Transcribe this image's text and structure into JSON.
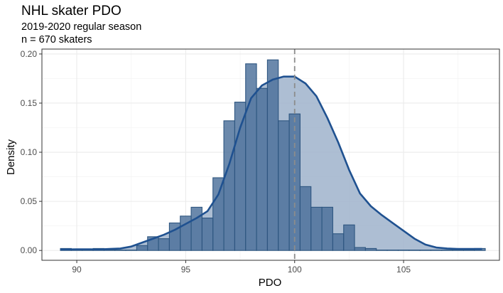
{
  "chart_data": {
    "type": "histogram",
    "title": "NHL skater PDO",
    "subtitle_lines": [
      "2019-2020 regular season",
      "n = 670 skaters"
    ],
    "xlabel": "PDO",
    "ylabel": "Density",
    "xlim": [
      88.4,
      109.4
    ],
    "ylim": [
      -0.01,
      0.205
    ],
    "x_ticks": [
      90,
      95,
      100,
      105
    ],
    "x_tick_labels": [
      "90",
      "95",
      "100",
      "105"
    ],
    "y_ticks": [
      0,
      0.05,
      0.1,
      0.15,
      0.2
    ],
    "y_tick_labels": [
      "0.00",
      "0.05",
      "0.10",
      "0.15",
      "0.20"
    ],
    "grid": true,
    "reference_line_x": 100,
    "bin_width": 0.5,
    "bins_x_start": [
      89.25,
      89.75,
      90.25,
      90.75,
      91.25,
      91.75,
      92.25,
      92.75,
      93.25,
      93.75,
      94.25,
      94.75,
      95.25,
      95.75,
      96.25,
      96.75,
      97.25,
      97.75,
      98.25,
      98.75,
      99.25,
      99.75,
      100.25,
      100.75,
      101.25,
      101.75,
      102.25,
      102.75,
      103.25,
      103.75,
      104.25,
      104.75,
      105.25,
      105.75,
      106.25,
      106.75,
      107.25,
      107.75,
      108.25
    ],
    "density": [
      0.002,
      0.0015,
      0.0015,
      0.002,
      0.0,
      0.0,
      0.0,
      0.005,
      0.014,
      0.012,
      0.028,
      0.035,
      0.044,
      0.033,
      0.074,
      0.132,
      0.151,
      0.19,
      0.165,
      0.194,
      0.132,
      0.139,
      0.065,
      0.044,
      0.044,
      0.017,
      0.026,
      0.003,
      0.002,
      0.0,
      0.0,
      0.0,
      0.0,
      0.0,
      0.0,
      0.0,
      0.0,
      0.0,
      0.002
    ],
    "density_curve": {
      "x": [
        89.25,
        90.0,
        90.5,
        91.0,
        91.5,
        92.0,
        92.5,
        93.0,
        93.5,
        94.0,
        94.5,
        95.0,
        95.5,
        96.0,
        96.5,
        97.0,
        97.5,
        98.0,
        98.5,
        99.0,
        99.5,
        100.0,
        100.5,
        101.0,
        101.5,
        102.0,
        102.5,
        103.0,
        103.5,
        104.0,
        104.5,
        105.0,
        105.5,
        106.0,
        106.5,
        107.0,
        107.5,
        108.0,
        108.6
      ],
      "y": [
        0.001,
        0.0012,
        0.0012,
        0.001,
        0.0015,
        0.002,
        0.004,
        0.008,
        0.012,
        0.016,
        0.021,
        0.027,
        0.033,
        0.04,
        0.057,
        0.088,
        0.125,
        0.155,
        0.168,
        0.174,
        0.177,
        0.177,
        0.17,
        0.157,
        0.135,
        0.11,
        0.082,
        0.058,
        0.045,
        0.036,
        0.028,
        0.02,
        0.012,
        0.006,
        0.003,
        0.002,
        0.0015,
        0.0015,
        0.0015
      ]
    },
    "colors": {
      "bar_fill": "#4a6f9a",
      "bar_stroke": "#2e5680",
      "density_fill": "#9fb3cb",
      "density_line": "#1f5190",
      "reference_line": "#8c8c8c",
      "grid_major": "#ebebeb",
      "grid_minor": "#f4f4f4",
      "panel_border": "#333333",
      "tick_label": "#4d4d4d"
    }
  }
}
